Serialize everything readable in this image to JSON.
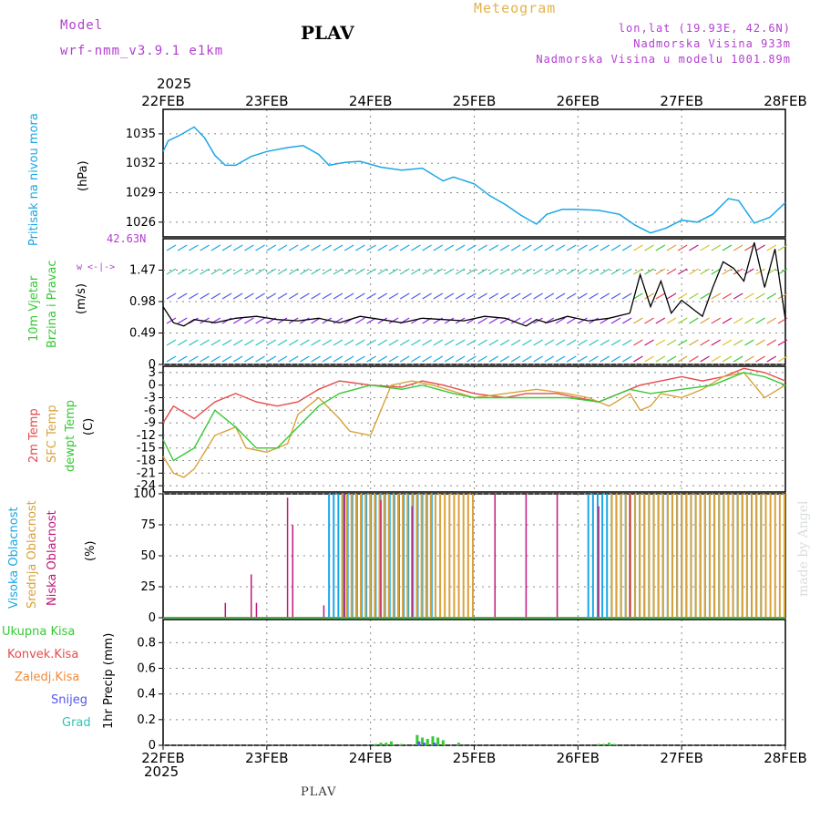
{
  "header": {
    "model_label": "Model",
    "model_name": "wrf-nmm_v3.9.1 e1km",
    "station": "PLAV",
    "meteogram": "Meteogram",
    "lonlat": "lon,lat (19.93E, 42.6N)",
    "elevation": "Nadmorska Visina 933m",
    "model_elevation": "Nadmorska Visina u modelu 1001.89m",
    "year": "2025",
    "footer_station": "PLAV",
    "made_by": "made by Angel"
  },
  "x_axis": {
    "dates": [
      "22FEB",
      "23FEB",
      "24FEB",
      "25FEB",
      "26FEB",
      "27FEB",
      "28FEB"
    ],
    "year": "2025"
  },
  "panel_labels": {
    "pressure": [
      "Pritisak na nivou mora",
      "(hPa)"
    ],
    "wind": [
      "10m Vjetar",
      "Brzina i Pravac",
      "(m/s)"
    ],
    "temp": [
      "2m Temp",
      "SFC Temp",
      "dewpt Temp",
      "(C)"
    ],
    "cloud": [
      "Visoka Oblacnost",
      "Srednja Oblacnost",
      "Niska Oblacnost",
      "(%)"
    ],
    "precip": [
      "Ukupna Kisa",
      "Konvek.Kisa",
      "Zaledj.Kisa",
      "Snijeg",
      "Grad",
      "1hr Precip (mm)"
    ],
    "wind_max": "42.63N",
    "wind_compass": "w <-|->"
  },
  "colors": {
    "pressure": "#1aa7e6",
    "temp2m": "#e84a4a",
    "sfc": "#d9a23a",
    "dewpt": "#35c935",
    "high_cloud": "#1aa7e6",
    "mid_cloud": "#d9a23a",
    "low_cloud": "#c0187a",
    "rain": "#35c935",
    "conv": "#e84a4a",
    "frz": "#f08a3a",
    "snow": "#5555ee",
    "hail": "#2fc2b8",
    "purple": "#b23fcf"
  },
  "chart_data": [
    {
      "type": "line",
      "name": "pressure",
      "ylabel": "(hPa)",
      "yticks": [
        1026,
        1029,
        1032,
        1035
      ],
      "ylim": [
        1024.5,
        1037.5
      ],
      "x_days": [
        0,
        0.05,
        0.15,
        0.3,
        0.4,
        0.5,
        0.6,
        0.7,
        0.85,
        1.0,
        1.2,
        1.35,
        1.5,
        1.6,
        1.75,
        1.9,
        2.1,
        2.3,
        2.5,
        2.7,
        2.8,
        3.0,
        3.15,
        3.3,
        3.45,
        3.6,
        3.7,
        3.85,
        4.0,
        4.2,
        4.4,
        4.55,
        4.7,
        4.85,
        5.0,
        5.15,
        5.3,
        5.45,
        5.55,
        5.7,
        5.85,
        6.0
      ],
      "values": [
        1033.2,
        1034.3,
        1034.8,
        1035.7,
        1034.6,
        1032.8,
        1031.8,
        1031.8,
        1032.7,
        1033.2,
        1033.6,
        1033.8,
        1032.9,
        1031.8,
        1032.1,
        1032.2,
        1031.6,
        1031.3,
        1031.5,
        1030.2,
        1030.6,
        1029.9,
        1028.7,
        1027.8,
        1026.7,
        1025.8,
        1026.8,
        1027.3,
        1027.3,
        1027.2,
        1026.8,
        1025.7,
        1024.9,
        1025.4,
        1026.2,
        1026.0,
        1026.8,
        1028.4,
        1028.2,
        1025.9,
        1026.5,
        1028.0
      ]
    },
    {
      "type": "line",
      "name": "wind",
      "ylabel": "(m/s)",
      "yticks": [
        0,
        0.49,
        0.98,
        1.47
      ],
      "ylim": [
        0,
        1.96
      ],
      "x_days": [
        0,
        0.1,
        0.2,
        0.3,
        0.5,
        0.7,
        0.9,
        1.1,
        1.3,
        1.5,
        1.7,
        1.9,
        2.1,
        2.3,
        2.5,
        2.7,
        2.9,
        3.1,
        3.3,
        3.5,
        3.6,
        3.7,
        3.9,
        4.1,
        4.3,
        4.5,
        4.6,
        4.7,
        4.8,
        4.9,
        5.0,
        5.2,
        5.3,
        5.4,
        5.5,
        5.6,
        5.7,
        5.8,
        5.9,
        6.0
      ],
      "values": [
        0.9,
        0.65,
        0.6,
        0.7,
        0.65,
        0.72,
        0.75,
        0.7,
        0.68,
        0.72,
        0.65,
        0.75,
        0.7,
        0.65,
        0.72,
        0.7,
        0.68,
        0.75,
        0.72,
        0.6,
        0.7,
        0.65,
        0.75,
        0.68,
        0.72,
        0.8,
        1.4,
        0.9,
        1.3,
        0.8,
        1.0,
        0.75,
        1.2,
        1.6,
        1.5,
        1.3,
        1.9,
        1.2,
        1.8,
        0.7
      ]
    },
    {
      "type": "line",
      "name": "temperature",
      "ylabel": "(C)",
      "yticks": [
        3,
        0,
        -3,
        -6,
        -9,
        -12,
        -15,
        -18,
        -21,
        -24
      ],
      "ylim": [
        -25.5,
        4.5
      ],
      "series": [
        {
          "name": "2m Temp",
          "x_days": [
            0,
            0.1,
            0.3,
            0.5,
            0.7,
            0.9,
            1.1,
            1.3,
            1.5,
            1.7,
            2.0,
            2.3,
            2.5,
            2.7,
            3.0,
            3.3,
            3.5,
            3.8,
            4.0,
            4.2,
            4.4,
            4.6,
            4.8,
            5.0,
            5.2,
            5.4,
            5.6,
            5.8,
            6.0
          ],
          "values": [
            -9,
            -5,
            -8,
            -4,
            -2,
            -4,
            -5,
            -4,
            -1,
            1,
            0,
            -0.5,
            1,
            0,
            -2,
            -3,
            -2,
            -2,
            -3,
            -4,
            -2,
            0,
            1,
            2,
            1,
            2,
            4,
            3,
            1
          ]
        },
        {
          "name": "SFC Temp",
          "x_days": [
            0,
            0.1,
            0.2,
            0.3,
            0.5,
            0.7,
            0.8,
            1.0,
            1.2,
            1.3,
            1.5,
            1.7,
            1.8,
            2.0,
            2.2,
            2.4,
            2.6,
            3.0,
            3.3,
            3.6,
            3.9,
            4.1,
            4.3,
            4.5,
            4.6,
            4.7,
            4.8,
            5.0,
            5.2,
            5.4,
            5.6,
            5.8,
            6.0
          ],
          "values": [
            -17,
            -21,
            -22,
            -20,
            -12,
            -10,
            -15,
            -16,
            -14,
            -7,
            -3,
            -8,
            -11,
            -12,
            0,
            1,
            0,
            -3,
            -2,
            -1,
            -2,
            -3,
            -5,
            -2,
            -6,
            -5,
            -2,
            -3,
            -1,
            2,
            3,
            -3,
            0
          ]
        },
        {
          "name": "dewpt Temp",
          "x_days": [
            0,
            0.1,
            0.3,
            0.5,
            0.7,
            0.9,
            1.1,
            1.3,
            1.5,
            1.7,
            2.0,
            2.3,
            2.5,
            2.8,
            3.0,
            3.3,
            3.6,
            3.9,
            4.2,
            4.5,
            4.7,
            5.0,
            5.3,
            5.6,
            5.8,
            6.0
          ],
          "values": [
            -13,
            -18,
            -15,
            -6,
            -10,
            -15,
            -15,
            -10,
            -5,
            -2,
            0,
            -1,
            0,
            -2,
            -3,
            -3,
            -3,
            -3,
            -4,
            -1,
            -2,
            -1,
            0,
            3,
            2,
            0
          ]
        }
      ]
    },
    {
      "type": "bar",
      "name": "cloud cover",
      "ylabel": "(%)",
      "yticks": [
        0,
        25,
        50,
        75,
        100
      ],
      "ylim": [
        0,
        100
      ],
      "series": [
        {
          "name": "Visoka Oblacnost",
          "ranges_days": [
            [
              1.6,
              2.6
            ],
            [
              4.1,
              5.8
            ]
          ],
          "value": 100
        },
        {
          "name": "Srednja Oblacnost",
          "ranges_days": [
            [
              1.7,
              3.0
            ],
            [
              4.3,
              6.0
            ]
          ],
          "value": 100
        },
        {
          "name": "Niska Oblacnost",
          "x_days": [
            0.6,
            0.85,
            0.9,
            1.2,
            1.25,
            1.55,
            1.75,
            2.1,
            2.4,
            3.2,
            3.5,
            3.8,
            4.2,
            4.5
          ],
          "values": [
            12,
            35,
            12,
            97,
            75,
            10,
            100,
            95,
            90,
            100,
            100,
            100,
            90,
            100
          ]
        }
      ]
    },
    {
      "type": "bar",
      "name": "precipitation",
      "ylabel": "1hr Precip (mm)",
      "yticks": [
        0,
        0.2,
        0.4,
        0.6,
        0.8
      ],
      "ylim": [
        0,
        0.98
      ],
      "series": [
        {
          "name": "Ukupna Kisa",
          "x_days": [
            2.05,
            2.1,
            2.15,
            2.2,
            2.3,
            2.45,
            2.5,
            2.55,
            2.6,
            2.65,
            2.7,
            2.85,
            4.2,
            4.25,
            4.3,
            4.35
          ],
          "values": [
            0.01,
            0.02,
            0.02,
            0.03,
            0.01,
            0.08,
            0.06,
            0.05,
            0.07,
            0.06,
            0.04,
            0.02,
            0.01,
            0.01,
            0.02,
            0.01
          ]
        },
        {
          "name": "Snijeg",
          "x_days": [
            2.45,
            2.5,
            2.6
          ],
          "values": [
            0.03,
            0.02,
            0.02
          ]
        }
      ]
    }
  ]
}
